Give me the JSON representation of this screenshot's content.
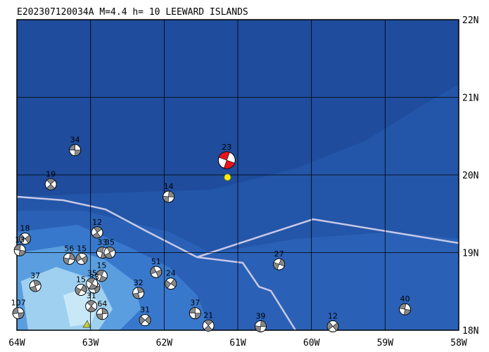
{
  "title": "E202307120034A M=4.4 h= 10 LEEWARD ISLANDS",
  "map": {
    "xlim": [
      -64,
      -58
    ],
    "ylim": [
      18,
      22
    ],
    "lon_ticks": [
      {
        "value": -64,
        "label": "64W"
      },
      {
        "value": -63,
        "label": "63W"
      },
      {
        "value": -62,
        "label": "62W"
      },
      {
        "value": -61,
        "label": "61W"
      },
      {
        "value": -60,
        "label": "60W"
      },
      {
        "value": -59,
        "label": "59W"
      },
      {
        "value": -58,
        "label": "58W"
      }
    ],
    "lat_ticks": [
      {
        "value": 18,
        "label": "18N"
      },
      {
        "value": 19,
        "label": "19N"
      },
      {
        "value": 20,
        "label": "20N"
      },
      {
        "value": 21,
        "label": "21N"
      },
      {
        "value": 22,
        "label": "22N"
      }
    ],
    "grid": true,
    "color": "#888888",
    "main_color": "#e8141c",
    "epicenter_color": "#ffee00",
    "main_event": {
      "label": "23",
      "lon": -61.15,
      "lat": 20.19
    },
    "epicenter": {
      "lon": -61.14,
      "lat": 19.97
    },
    "events": [
      {
        "label": "34",
        "lon": -63.21,
        "lat": 20.32
      },
      {
        "label": "19",
        "lon": -63.54,
        "lat": 19.88
      },
      {
        "label": "14",
        "lon": -61.94,
        "lat": 19.72
      },
      {
        "label": "18",
        "lon": -63.89,
        "lat": 19.18
      },
      {
        "label": "13",
        "lon": -63.96,
        "lat": 19.03
      },
      {
        "label": "12",
        "lon": -62.91,
        "lat": 19.26
      },
      {
        "label": "56",
        "lon": -63.29,
        "lat": 18.92
      },
      {
        "label": "15",
        "lon": -63.12,
        "lat": 18.92
      },
      {
        "label": "33",
        "lon": -62.84,
        "lat": 19.0
      },
      {
        "label": "35",
        "lon": -62.74,
        "lat": 19.0
      },
      {
        "label": "27",
        "lon": -60.44,
        "lat": 18.85
      },
      {
        "label": "51",
        "lon": -62.11,
        "lat": 18.75
      },
      {
        "label": "15",
        "lon": -62.85,
        "lat": 18.7
      },
      {
        "label": "37",
        "lon": -63.75,
        "lat": 18.57
      },
      {
        "label": "15",
        "lon": -63.13,
        "lat": 18.52
      },
      {
        "label": "33",
        "lon": -62.95,
        "lat": 18.55
      },
      {
        "label": "35",
        "lon": -62.98,
        "lat": 18.6
      },
      {
        "label": "32",
        "lon": -62.35,
        "lat": 18.48
      },
      {
        "label": "24",
        "lon": -61.91,
        "lat": 18.6
      },
      {
        "label": "107",
        "lon": -63.98,
        "lat": 18.22
      },
      {
        "label": "31",
        "lon": -62.99,
        "lat": 18.31
      },
      {
        "label": "64",
        "lon": -62.84,
        "lat": 18.21
      },
      {
        "label": "31",
        "lon": -62.26,
        "lat": 18.13
      },
      {
        "label": "37",
        "lon": -61.58,
        "lat": 18.22
      },
      {
        "label": "21",
        "lon": -61.4,
        "lat": 18.06
      },
      {
        "label": "39",
        "lon": -60.69,
        "lat": 18.05
      },
      {
        "label": "12",
        "lon": -59.71,
        "lat": 18.05
      },
      {
        "label": "40",
        "lon": -58.73,
        "lat": 18.27
      }
    ]
  }
}
